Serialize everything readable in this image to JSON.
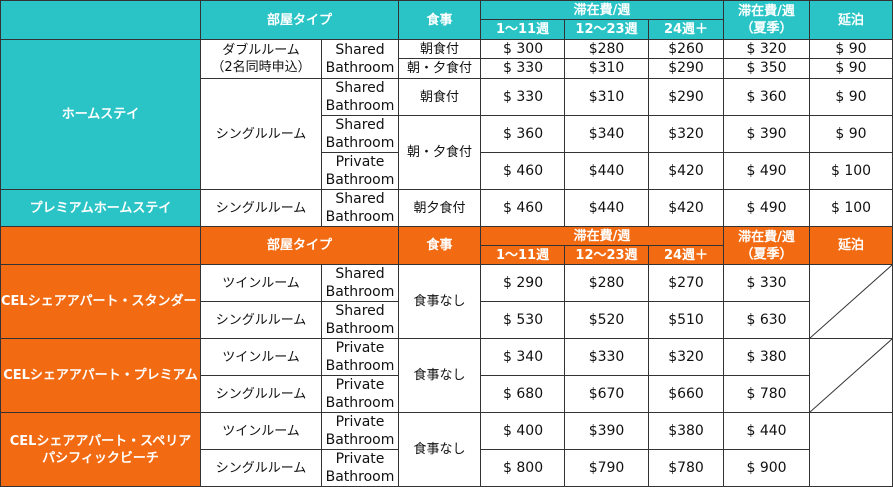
{
  "header1": {
    "room_type": "部屋タイプ",
    "meal": "食事",
    "stay_fee": "滞在費/週",
    "weeks_1_11": "1～11週",
    "weeks_12_23": "12～23週",
    "weeks_24": "24週＋",
    "summer_line1": "滞在費/週",
    "summer_line2": "（夏季）",
    "extension": "延泊"
  },
  "homestay": {
    "label": "ホームステイ",
    "double_line1": "ダブルルーム",
    "double_line2": "（2名同時申込）",
    "single": "シングルルーム",
    "rows": [
      {
        "bath1": "Shared",
        "bath2": "Bathroom",
        "meal": "朝食付",
        "p1": "$ 300",
        "p2": "$280",
        "p3": "$260",
        "summer": "$ 320",
        "ext": "$ 90"
      },
      {
        "meal": "朝・夕食付",
        "p1": "$ 330",
        "p2": "$310",
        "p3": "$290",
        "summer": "$ 350",
        "ext": "$ 90"
      },
      {
        "bath1": "Shared",
        "bath2": "Bathroom",
        "meal": "朝食付",
        "p1": "$ 330",
        "p2": "$310",
        "p3": "$290",
        "summer": "$ 360",
        "ext": "$ 90"
      },
      {
        "bath1": "Shared",
        "bath2": "Bathroom",
        "meal": "朝・夕食付",
        "p1": "$ 360",
        "p2": "$340",
        "p3": "$320",
        "summer": "$ 390",
        "ext": "$ 90"
      },
      {
        "bath1": "Private",
        "bath2": "Bathroom",
        "p1": "$ 460",
        "p2": "$440",
        "p3": "$420",
        "summer": "$ 490",
        "ext": "$ 100"
      }
    ]
  },
  "premium": {
    "label": "プレミアムホームステイ",
    "room": "シングルルーム",
    "bath1": "Shared",
    "bath2": "Bathroom",
    "meal": "朝夕食付",
    "p1": "$ 460",
    "p2": "$440",
    "p3": "$420",
    "summer": "$ 490",
    "ext": "$ 100"
  },
  "header2": {
    "room_type": "部屋タイプ",
    "meal": "食事",
    "stay_fee": "滞在費/週",
    "weeks_1_11": "1～11週",
    "weeks_12_23": "12～23週",
    "weeks_24": "24週＋",
    "summer_line1": "滞在費/週",
    "summer_line2": "（夏季）",
    "extension": "延泊"
  },
  "share_standard": {
    "label": "CELシェアアパート・スタンダード",
    "meal": "食事なし",
    "rows": [
      {
        "room": "ツインルーム",
        "bath1": "Shared",
        "bath2": "Bathroom",
        "p1": "$ 290",
        "p2": "$280",
        "p3": "$270",
        "summer": "$ 330"
      },
      {
        "room": "シングルルーム",
        "bath1": "Shared",
        "bath2": "Bathroom",
        "p1": "$ 530",
        "p2": "$520",
        "p3": "$510",
        "summer": "$ 630"
      }
    ]
  },
  "share_premium": {
    "label": "CELシェアアパート・プレミアム",
    "meal": "食事なし",
    "rows": [
      {
        "room": "ツインルーム",
        "bath1": "Private",
        "bath2": "Bathroom",
        "p1": "$ 340",
        "p2": "$330",
        "p3": "$320",
        "summer": "$ 380"
      },
      {
        "room": "シングルルーム",
        "bath1": "Private",
        "bath2": "Bathroom",
        "p1": "$ 680",
        "p2": "$670",
        "p3": "$660",
        "summer": "$ 780"
      }
    ]
  },
  "share_superior": {
    "label_line1": "CELシェアアパート・スペリア",
    "label_line2": "パシフィックビーチ",
    "meal": "食事なし",
    "rows": [
      {
        "room": "ツインルーム",
        "bath1": "Private",
        "bath2": "Bathroom",
        "p1": "$ 400",
        "p2": "$390",
        "p3": "$380",
        "summer": "$ 440"
      },
      {
        "room": "シングルルーム",
        "bath1": "Private",
        "bath2": "Bathroom",
        "p1": "$ 800",
        "p2": "$790",
        "p3": "$780",
        "summer": "$ 900"
      }
    ]
  },
  "colors": {
    "teal": "#2bc4c6",
    "orange": "#f26b12"
  }
}
